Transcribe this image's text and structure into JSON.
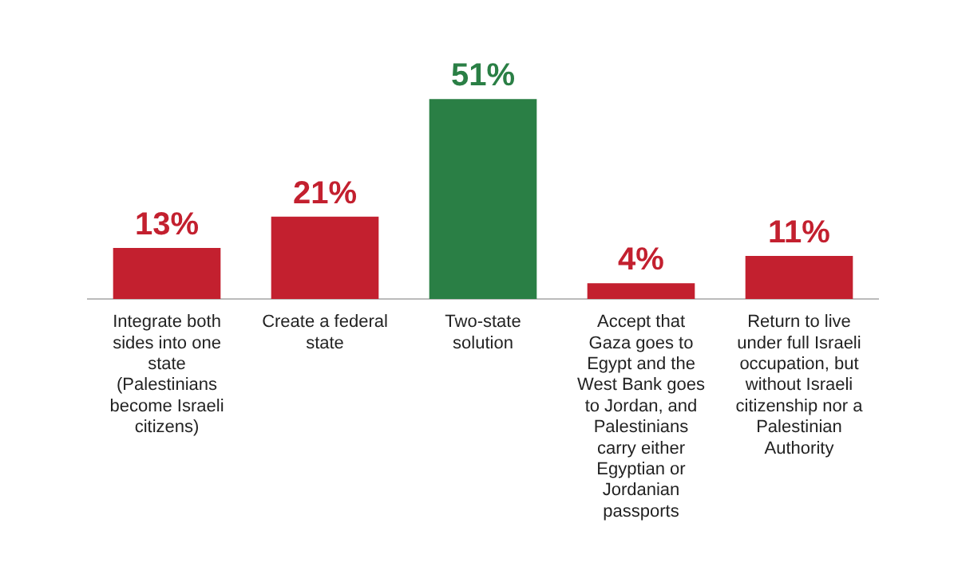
{
  "chart_data": {
    "type": "bar",
    "categories": [
      "Integrate both sides into one state (Palestinians become Israeli citizens)",
      "Create a federal state",
      "Two-state solution",
      "Accept that Gaza goes to Egypt and the West Bank goes to Jordan, and Palestinians carry either Egyptian or Jordanian passports",
      "Return to live under full Israeli occupation, but without Israeli citizenship nor a Palestinian Authority"
    ],
    "values": [
      13,
      21,
      51,
      4,
      11
    ],
    "value_labels": [
      "13%",
      "21%",
      "51%",
      "4%",
      "11%"
    ],
    "colors": [
      "#c3202f",
      "#c3202f",
      "#2a7f45",
      "#c3202f",
      "#c3202f"
    ],
    "grid": false,
    "legend": false
  }
}
